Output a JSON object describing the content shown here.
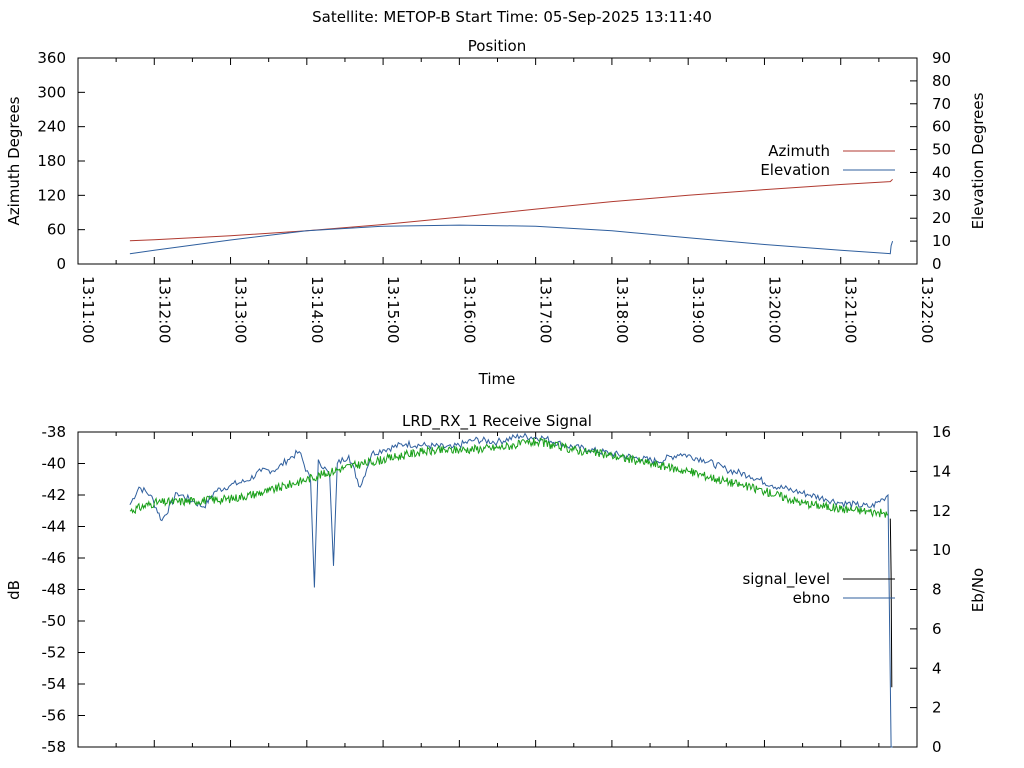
{
  "page_title": "Satellite: METOP-B    Start Time: 05-Sep-2025 13:11:40",
  "chart_data": [
    {
      "type": "line",
      "title": "Position",
      "xlabel": "Time",
      "ylabel": "Azimuth Degrees",
      "y2label": "Elevation Degrees",
      "x_ticks": [
        "13:11:00",
        "13:12:00",
        "13:13:00",
        "13:14:00",
        "13:15:00",
        "13:16:00",
        "13:17:00",
        "13:18:00",
        "13:19:00",
        "13:20:00",
        "13:21:00",
        "13:22:00"
      ],
      "xlim_minutes": [
        0,
        11
      ],
      "ylim": [
        0,
        360
      ],
      "y_ticks": [
        0,
        60,
        120,
        180,
        240,
        300,
        360
      ],
      "y2lim": [
        0,
        90
      ],
      "y2_ticks": [
        0,
        10,
        20,
        30,
        40,
        50,
        60,
        70,
        80,
        90
      ],
      "legend_position": "right",
      "grid": false,
      "series": [
        {
          "name": "Azimuth",
          "axis": "y",
          "color": "#b03a30",
          "x": [
            0.68,
            1,
            2,
            3,
            4,
            5,
            6,
            7,
            8,
            9,
            10,
            10.65,
            10.68
          ],
          "y": [
            40.5,
            42.5,
            49.5,
            58,
            69,
            82,
            96,
            109,
            120,
            130,
            139,
            144,
            148
          ]
        },
        {
          "name": "Elevation",
          "axis": "y2",
          "color": "#2f5f9e",
          "x": [
            0.68,
            1,
            2,
            3,
            4,
            5,
            6,
            7,
            8,
            9,
            10,
            10.65,
            10.66,
            10.68
          ],
          "y": [
            4.5,
            6,
            10.5,
            14.5,
            16.5,
            17,
            16.5,
            14.5,
            11.5,
            8.5,
            6,
            4.5,
            8,
            10
          ]
        }
      ]
    },
    {
      "type": "line",
      "title": "LRD_RX_1 Receive Signal",
      "xlabel": "",
      "ylabel": "dB",
      "y2label": "Eb/No",
      "xlim_minutes": [
        0,
        11
      ],
      "ylim": [
        -58,
        -38
      ],
      "y_ticks": [
        -58,
        -56,
        -54,
        -52,
        -50,
        -48,
        -46,
        -44,
        -42,
        -40,
        -38
      ],
      "y2lim": [
        0,
        16
      ],
      "y2_ticks": [
        0,
        2,
        4,
        6,
        8,
        10,
        12,
        14,
        16
      ],
      "legend_position": "right",
      "grid": false,
      "series": [
        {
          "name": "signal_level",
          "axis": "y",
          "color": "#000000",
          "x": [
            10.65,
            10.66,
            10.67
          ],
          "y": [
            -43.5,
            -47.0,
            -54.2
          ]
        },
        {
          "name": "ebno",
          "axis": "y2",
          "color": "#2f5f9e",
          "x": [
            0.68,
            0.8,
            0.95,
            1.1,
            1.3,
            1.5,
            1.65,
            1.8,
            2.0,
            2.2,
            2.4,
            2.6,
            2.75,
            2.9,
            3.05,
            3.1,
            3.15,
            3.3,
            3.35,
            3.4,
            3.55,
            3.7,
            3.85,
            4.0,
            4.3,
            4.6,
            4.9,
            5.2,
            5.5,
            5.8,
            6.1,
            6.4,
            6.7,
            7.0,
            7.3,
            7.6,
            7.9,
            8.2,
            8.5,
            8.8,
            9.1,
            9.4,
            9.6,
            9.8,
            10.0,
            10.2,
            10.4,
            10.55,
            10.62,
            10.66,
            10.68
          ],
          "y": [
            12.3,
            13.2,
            12.8,
            11.5,
            12.9,
            12.5,
            12.2,
            13.0,
            13.3,
            13.5,
            14.0,
            14.1,
            14.6,
            15.0,
            13.5,
            8.1,
            14.6,
            13.8,
            9.2,
            14.4,
            14.8,
            13.2,
            14.9,
            15.1,
            15.4,
            15.3,
            15.2,
            15.6,
            15.5,
            15.8,
            15.7,
            15.3,
            15.1,
            14.9,
            14.7,
            14.5,
            14.9,
            14.6,
            14.1,
            13.8,
            13.3,
            13.0,
            12.8,
            12.6,
            12.4,
            12.3,
            12.2,
            12.6,
            12.8,
            0.0,
            0.0
          ]
        },
        {
          "name": "",
          "axis": "y2",
          "color": "#1aa01a",
          "x": [
            0.68,
            1.0,
            1.5,
            2.0,
            2.5,
            3.0,
            3.5,
            4.0,
            4.5,
            5.0,
            5.5,
            6.0,
            6.5,
            7.0,
            7.5,
            8.0,
            8.5,
            9.0,
            9.5,
            10.0,
            10.3,
            10.5,
            10.62
          ],
          "y": [
            12.0,
            12.4,
            12.5,
            12.6,
            13.0,
            13.6,
            14.2,
            14.6,
            15.0,
            15.1,
            15.2,
            15.5,
            15.1,
            14.8,
            14.4,
            14.0,
            13.5,
            13.0,
            12.4,
            12.1,
            12.0,
            11.9,
            11.8
          ]
        }
      ]
    }
  ]
}
